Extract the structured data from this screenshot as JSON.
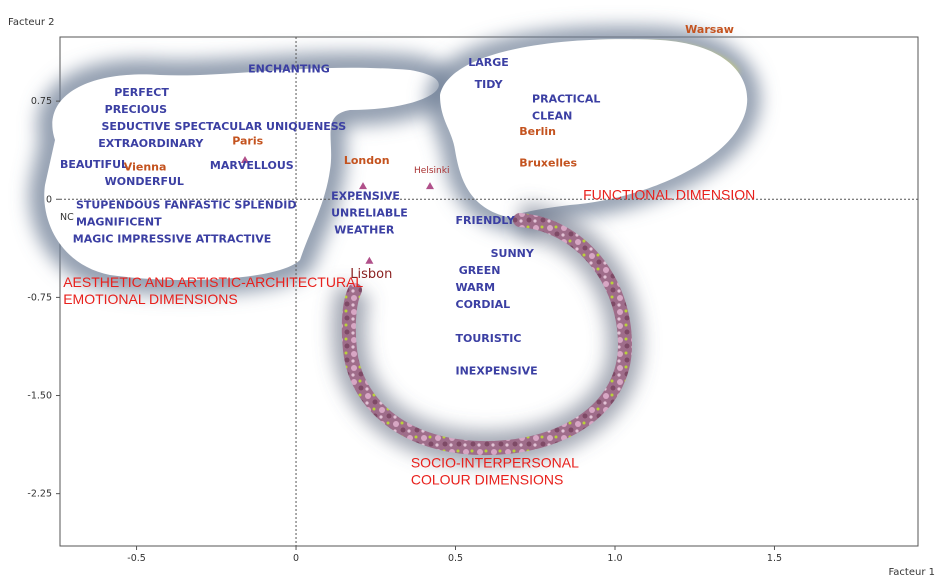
{
  "colors": {
    "word": "#3b3fa3",
    "city": "#c4531f",
    "dimension": "#e8201c",
    "marker": "#b0508a",
    "frame": "#555555",
    "blob_shadow": "#6d7c94",
    "flower_ring": "#b57a9a"
  },
  "chart_data": {
    "type": "scatter",
    "xlabel": "Facteur 1",
    "ylabel": "Facteur 2",
    "xlim": [
      -0.74,
      1.95
    ],
    "ylim": [
      -2.65,
      1.24
    ],
    "xticks": [
      {
        "v": -0.5,
        "label": "-0.5"
      },
      {
        "v": 0,
        "label": "0"
      },
      {
        "v": 0.5,
        "label": "0.5"
      },
      {
        "v": 1.0,
        "label": "1.0"
      },
      {
        "v": 1.5,
        "label": "1.5"
      }
    ],
    "yticks": [
      {
        "v": 0.75,
        "label": "0.75"
      },
      {
        "v": 0,
        "label": "0"
      },
      {
        "v": -0.75,
        "label": "-0.75"
      },
      {
        "v": -1.5,
        "label": "-1.50"
      },
      {
        "v": -2.25,
        "label": "-2.25"
      }
    ],
    "grid": false,
    "reference_lines": [
      0,
      0
    ],
    "terms": [
      {
        "label": "ENCHANTING",
        "x": -0.15,
        "y": 0.97
      },
      {
        "label": "PERFECT",
        "x": -0.57,
        "y": 0.79
      },
      {
        "label": "PRECIOUS",
        "x": -0.6,
        "y": 0.66
      },
      {
        "label": "SEDUCTIVE SPECTACULAR UNIQUENESS",
        "x": -0.61,
        "y": 0.53
      },
      {
        "label": "EXTRAORDINARY",
        "x": -0.62,
        "y": 0.4
      },
      {
        "label": "BEAUTIFUL",
        "x": -0.74,
        "y": 0.24
      },
      {
        "label": "WONDERFUL",
        "x": -0.6,
        "y": 0.11
      },
      {
        "label": "MARVELLOUS",
        "x": -0.27,
        "y": 0.23
      },
      {
        "label": "STUPENDOUS FANFASTIC  SPLENDID",
        "x": -0.69,
        "y": -0.07
      },
      {
        "label": "MAGNIFICENT",
        "x": -0.69,
        "y": -0.2
      },
      {
        "label": "MAGIC  IMPRESSIVE ATTRACTIVE",
        "x": -0.7,
        "y": -0.33
      },
      {
        "label": "EXPENSIVE",
        "x": 0.11,
        "y": 0.0
      },
      {
        "label": "UNRELIABLE",
        "x": 0.11,
        "y": -0.13
      },
      {
        "label": "WEATHER",
        "x": 0.12,
        "y": -0.26
      },
      {
        "label": "LARGE",
        "x": 0.54,
        "y": 1.02
      },
      {
        "label": "TIDY",
        "x": 0.56,
        "y": 0.85
      },
      {
        "label": "PRACTICAL",
        "x": 0.74,
        "y": 0.74
      },
      {
        "label": "CLEAN",
        "x": 0.74,
        "y": 0.61
      },
      {
        "label": "FRIENDLY",
        "x": 0.5,
        "y": -0.19
      },
      {
        "label": "SUNNY",
        "x": 0.61,
        "y": -0.44
      },
      {
        "label": "GREEN",
        "x": 0.51,
        "y": -0.57
      },
      {
        "label": "WARM",
        "x": 0.5,
        "y": -0.7
      },
      {
        "label": "CORDIAL",
        "x": 0.5,
        "y": -0.83
      },
      {
        "label": "TOURISTIC",
        "x": 0.5,
        "y": -1.09
      },
      {
        "label": "INEXPENSIVE",
        "x": 0.5,
        "y": -1.34
      }
    ],
    "cities": [
      {
        "label": "Paris",
        "x": -0.2,
        "y": 0.42,
        "mx": -0.16,
        "my": 0.3
      },
      {
        "label": "Vienna",
        "x": -0.54,
        "y": 0.22
      },
      {
        "label": "London",
        "x": 0.15,
        "y": 0.27,
        "mx": 0.21,
        "my": 0.1
      },
      {
        "label": "Helsinki",
        "x": 0.37,
        "y": 0.2,
        "mx": 0.42,
        "my": 0.1
      },
      {
        "label": "Berlin",
        "x": 0.7,
        "y": 0.49
      },
      {
        "label": "Bruxelles",
        "x": 0.7,
        "y": 0.25
      },
      {
        "label": "Warsaw",
        "x": 1.22,
        "y": 1.27
      },
      {
        "label": "Lisbon",
        "x": 0.17,
        "y": -0.6,
        "mx": 0.23,
        "my": -0.47
      }
    ],
    "dimensions": [
      {
        "lines": [
          "AESTHETIC AND ARTISTIC-ARCHITECTURAL",
          "EMOTIONAL DIMENSIONS"
        ],
        "x": -0.73,
        "y": -0.67
      },
      {
        "lines": [
          "FUNCTIONAL DIMENSION"
        ],
        "x": 0.9,
        "y": 0.0
      },
      {
        "lines": [
          "SOCIO-INTERPERSONAL",
          "COLOUR DIMENSIONS"
        ],
        "x": 0.36,
        "y": -2.05
      }
    ],
    "stray_label": {
      "label": "NC",
      "x": -0.74,
      "y": -0.16
    }
  }
}
